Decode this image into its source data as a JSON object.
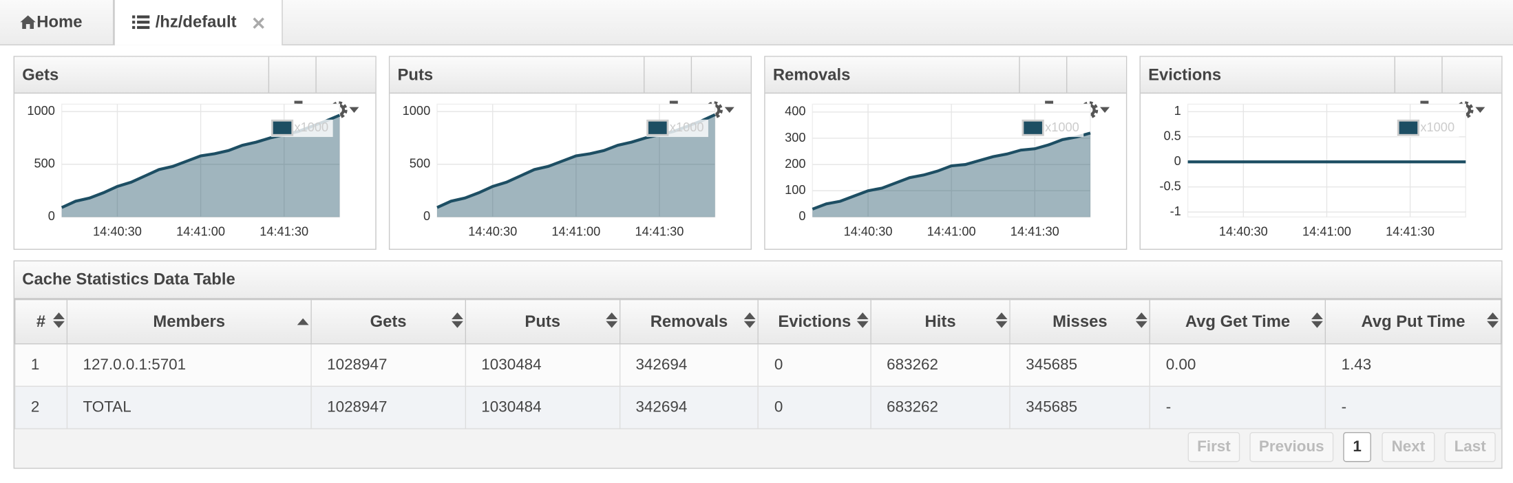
{
  "tabs": [
    {
      "label": "Home"
    },
    {
      "label": "/hz/default"
    }
  ],
  "chart_data": [
    {
      "type": "area",
      "title": "Gets",
      "x": [
        "14:40:10",
        "14:40:15",
        "14:40:20",
        "14:40:25",
        "14:40:30",
        "14:40:35",
        "14:40:40",
        "14:40:45",
        "14:40:50",
        "14:40:55",
        "14:41:00",
        "14:41:05",
        "14:41:10",
        "14:41:15",
        "14:41:20",
        "14:41:25",
        "14:41:30",
        "14:41:35",
        "14:41:40",
        "14:41:45",
        "14:41:50"
      ],
      "xlim": [
        "14:40:10",
        "14:41:50"
      ],
      "xticks": [
        "14:40:30",
        "14:41:00",
        "14:41:30"
      ],
      "ylim": [
        0,
        1070
      ],
      "yticks": [
        0,
        500,
        1000
      ],
      "grid": true,
      "series": [
        {
          "name": "x1000",
          "color": "#1d4e63",
          "values": [
            90,
            150,
            180,
            230,
            290,
            330,
            390,
            450,
            480,
            530,
            580,
            600,
            630,
            680,
            710,
            750,
            780,
            810,
            860,
            910,
            965
          ]
        }
      ]
    },
    {
      "type": "area",
      "title": "Puts",
      "x": [
        "14:40:10",
        "14:40:15",
        "14:40:20",
        "14:40:25",
        "14:40:30",
        "14:40:35",
        "14:40:40",
        "14:40:45",
        "14:40:50",
        "14:40:55",
        "14:41:00",
        "14:41:05",
        "14:41:10",
        "14:41:15",
        "14:41:20",
        "14:41:25",
        "14:41:30",
        "14:41:35",
        "14:41:40",
        "14:41:45",
        "14:41:50"
      ],
      "xlim": [
        "14:40:10",
        "14:41:50"
      ],
      "xticks": [
        "14:40:30",
        "14:41:00",
        "14:41:30"
      ],
      "ylim": [
        0,
        1070
      ],
      "yticks": [
        0,
        500,
        1000
      ],
      "grid": true,
      "series": [
        {
          "name": "x1000",
          "color": "#1d4e63",
          "values": [
            90,
            150,
            180,
            230,
            290,
            330,
            390,
            450,
            480,
            530,
            580,
            600,
            630,
            680,
            710,
            750,
            780,
            810,
            860,
            910,
            970
          ]
        }
      ]
    },
    {
      "type": "area",
      "title": "Removals",
      "x": [
        "14:40:10",
        "14:40:15",
        "14:40:20",
        "14:40:25",
        "14:40:30",
        "14:40:35",
        "14:40:40",
        "14:40:45",
        "14:40:50",
        "14:40:55",
        "14:41:00",
        "14:41:05",
        "14:41:10",
        "14:41:15",
        "14:41:20",
        "14:41:25",
        "14:41:30",
        "14:41:35",
        "14:41:40",
        "14:41:45",
        "14:41:50"
      ],
      "xlim": [
        "14:40:10",
        "14:41:50"
      ],
      "xticks": [
        "14:40:30",
        "14:41:00",
        "14:41:30"
      ],
      "ylim": [
        0,
        430
      ],
      "yticks": [
        0,
        100,
        200,
        300,
        400
      ],
      "grid": true,
      "series": [
        {
          "name": "x1000",
          "color": "#1d4e63",
          "values": [
            30,
            50,
            60,
            80,
            100,
            110,
            130,
            150,
            160,
            175,
            195,
            200,
            215,
            230,
            240,
            255,
            260,
            275,
            295,
            305,
            320
          ]
        }
      ]
    },
    {
      "type": "line",
      "title": "Evictions",
      "x": [
        "14:40:10",
        "14:40:15",
        "14:40:20",
        "14:40:25",
        "14:40:30",
        "14:40:35",
        "14:40:40",
        "14:40:45",
        "14:40:50",
        "14:40:55",
        "14:41:00",
        "14:41:05",
        "14:41:10",
        "14:41:15",
        "14:41:20",
        "14:41:25",
        "14:41:30",
        "14:41:35",
        "14:41:40",
        "14:41:45",
        "14:41:50"
      ],
      "xlim": [
        "14:40:10",
        "14:41:50"
      ],
      "xticks": [
        "14:40:30",
        "14:41:00",
        "14:41:30"
      ],
      "ylim": [
        -1.1,
        1.15
      ],
      "yticks": [
        -1,
        -0.5,
        0,
        0.5,
        1
      ],
      "grid": true,
      "series": [
        {
          "name": "x1000",
          "color": "#1d4e63",
          "values": [
            0,
            0,
            0,
            0,
            0,
            0,
            0,
            0,
            0,
            0,
            0,
            0,
            0,
            0,
            0,
            0,
            0,
            0,
            0,
            0,
            0
          ]
        }
      ]
    }
  ],
  "table": {
    "title": "Cache Statistics Data Table",
    "columns": [
      "#",
      "Members",
      "Gets",
      "Puts",
      "Removals",
      "Evictions",
      "Hits",
      "Misses",
      "Avg Get Time",
      "Avg Put Time"
    ],
    "rows": [
      [
        "1",
        "127.0.0.1:5701",
        "1028947",
        "1030484",
        "342694",
        "0",
        "683262",
        "345685",
        "0.00",
        "1.43"
      ],
      [
        "2",
        "TOTAL",
        "1028947",
        "1030484",
        "342694",
        "0",
        "683262",
        "345685",
        "-",
        "-"
      ]
    ]
  },
  "pagination": [
    "First",
    "Previous",
    "1",
    "Next",
    "Last"
  ]
}
